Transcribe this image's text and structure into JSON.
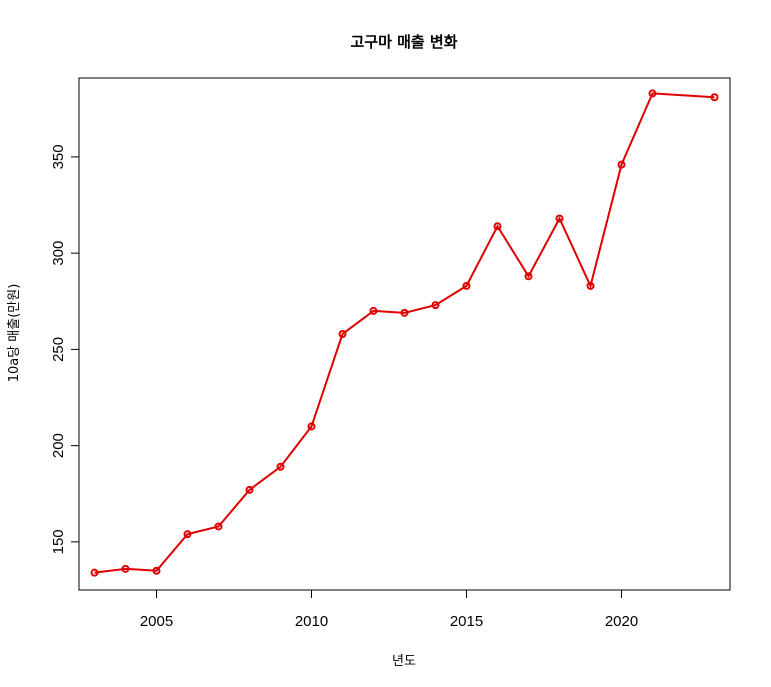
{
  "chart_data": {
    "type": "line",
    "title": "고구마 매출 변화",
    "xlabel": "년도",
    "ylabel": "10a당 매출(만원)",
    "xlim": [
      2002.5,
      2023.5
    ],
    "ylim": [
      125,
      391
    ],
    "xticks": [
      "2005",
      "2010",
      "2015",
      "2020"
    ],
    "yticks": [
      "150",
      "200",
      "250",
      "300",
      "350"
    ],
    "grid": false,
    "series": [
      {
        "color": "#e00000",
        "x": [
          2003,
          2004,
          2005,
          2006,
          2007,
          2008,
          2009,
          2010,
          2011,
          2012,
          2013,
          2014,
          2015,
          2016,
          2017,
          2018,
          2019,
          2020,
          2021,
          2023
        ],
        "y": [
          134,
          136,
          135,
          154,
          158,
          177,
          189,
          210,
          258,
          270,
          269,
          273,
          283,
          314,
          288,
          318,
          283,
          346,
          383,
          381
        ]
      }
    ]
  }
}
